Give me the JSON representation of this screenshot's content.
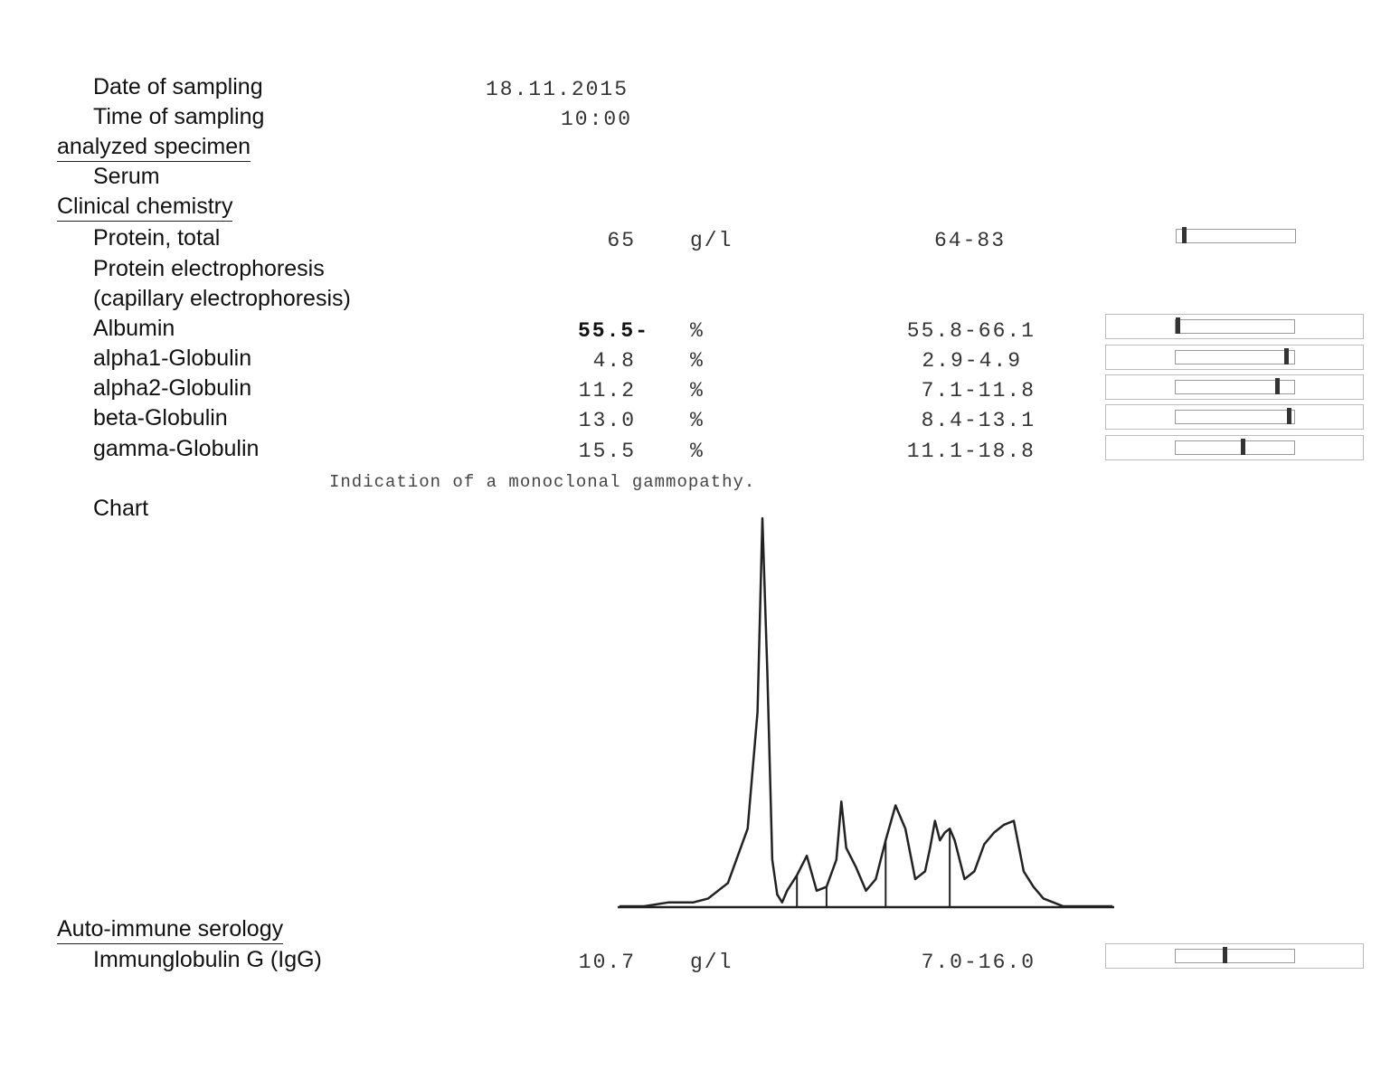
{
  "sampling": {
    "date_label": "Date of sampling",
    "date_value": "18.11.2015",
    "time_label": "Time of sampling",
    "time_value": "10:00"
  },
  "specimen": {
    "heading": "analyzed specimen",
    "type": "Serum"
  },
  "clinical_chemistry": {
    "heading": "Clinical chemistry",
    "protein_total": {
      "name": "Protein, total",
      "value": "65",
      "unit": "g/l",
      "range": "64-83",
      "level": 0.05
    },
    "electrophoresis_title": "Protein electrophoresis",
    "electrophoresis_subtitle": "(capillary electrophoresis)",
    "fractions": [
      {
        "name": "Albumin",
        "value": "55.5-",
        "unit": "%",
        "range": "55.8-66.1",
        "flagged": true,
        "level": 0.0
      },
      {
        "name": "alpha1-Globulin",
        "value": "4.8",
        "unit": "%",
        "range": "2.9-4.9",
        "flagged": false,
        "level": 0.95
      },
      {
        "name": "alpha2-Globulin",
        "value": "11.2",
        "unit": "%",
        "range": "7.1-11.8",
        "flagged": false,
        "level": 0.87
      },
      {
        "name": "beta-Globulin",
        "value": "13.0",
        "unit": "%",
        "range": "8.4-13.1",
        "flagged": false,
        "level": 0.98
      },
      {
        "name": "gamma-Globulin",
        "value": "15.5",
        "unit": "%",
        "range": "11.1-18.8",
        "flagged": false,
        "level": 0.57
      }
    ],
    "note": "Indication of a monoclonal gammopathy.",
    "chart_label": "Chart"
  },
  "autoimmune": {
    "heading": "Auto-immune serology",
    "igg": {
      "name": "Immunglobulin G (IgG)",
      "value": "10.7",
      "unit": "g/l",
      "range": "7.0-16.0",
      "level": 0.41
    }
  },
  "chart_data": {
    "type": "line",
    "title": "",
    "xlabel": "",
    "ylabel": "",
    "grid": false,
    "x": [
      0,
      5,
      10,
      15,
      18,
      22,
      26,
      28,
      29,
      30,
      31,
      32,
      33,
      34,
      36,
      38,
      40,
      42,
      44,
      45,
      46,
      48,
      50,
      52,
      54,
      56,
      58,
      60,
      62,
      63,
      64,
      65,
      66,
      67,
      68,
      70,
      72,
      74,
      76,
      78,
      80,
      82,
      84,
      86,
      88,
      90,
      100
    ],
    "y": [
      0,
      0,
      1,
      1,
      2,
      6,
      20,
      50,
      100,
      60,
      12,
      3,
      1,
      4,
      8,
      13,
      4,
      5,
      12,
      27,
      15,
      10,
      4,
      7,
      17,
      26,
      20,
      7,
      9,
      15,
      22,
      17,
      19,
      20,
      17,
      7,
      9,
      16,
      19,
      21,
      22,
      9,
      5,
      2,
      1,
      0,
      0
    ],
    "dividers_x": [
      36,
      42,
      54,
      67
    ]
  }
}
